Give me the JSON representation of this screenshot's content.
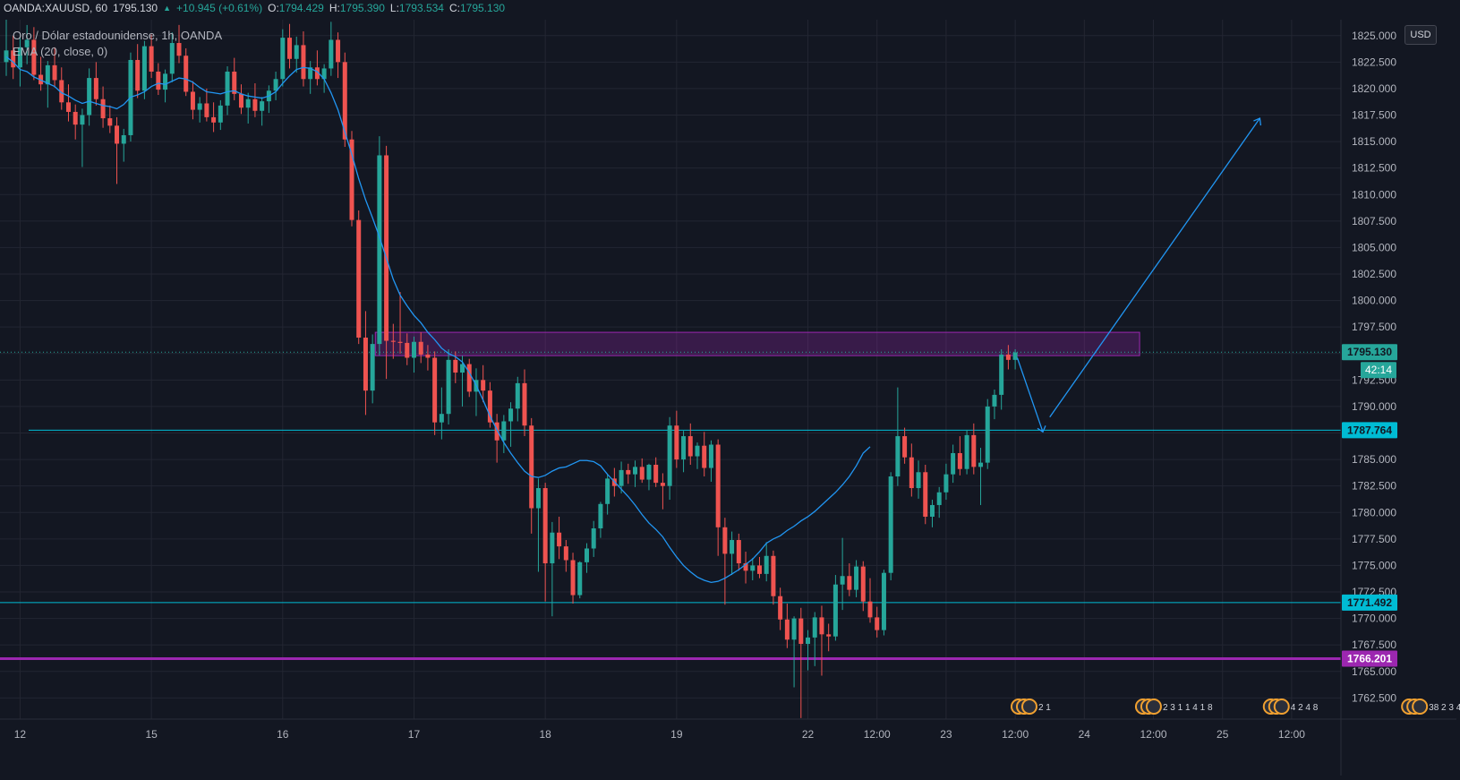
{
  "header": {
    "symbol": "OANDA:XAUUSD, 60",
    "last": "1795.130",
    "change": "+10.945 (+0.61%)",
    "o_label": "O:",
    "o": "1794.429",
    "h_label": "H:",
    "h": "1795.390",
    "l_label": "L:",
    "l": "1793.534",
    "c_label": "C:",
    "c": "1795.130"
  },
  "legend": {
    "title": "Oro / Dólar estadounidense, 1h, OANDA",
    "indicator": "EMA (20, close, 0)"
  },
  "currency": "USD",
  "colors": {
    "background": "#131722",
    "up": "#26a69a",
    "down": "#ef5350",
    "ema": "#2196f3",
    "cyan_line": "#00bcd4",
    "purple_line": "#9c27b0",
    "zone": "#9c27b0",
    "arrow": "#2196f3",
    "last_price": "#26a69a"
  },
  "chart_data": {
    "type": "candlestick",
    "symbol": "XAUUSD",
    "interval": "60",
    "ylim": [
      1760.5,
      1826.5
    ],
    "y_ticks": [
      "1762.500",
      "1765.000",
      "1767.500",
      "1770.000",
      "1772.500",
      "1775.000",
      "1777.500",
      "1780.000",
      "1782.500",
      "1785.000",
      "1787.500",
      "1790.000",
      "1792.500",
      "1795.000",
      "1797.500",
      "1800.000",
      "1802.500",
      "1805.000",
      "1807.500",
      "1810.000",
      "1812.500",
      "1815.000",
      "1817.500",
      "1820.000",
      "1822.500",
      "1825.000"
    ],
    "x_ticks": [
      {
        "label": "12",
        "bar": 2
      },
      {
        "label": "15",
        "bar": 21
      },
      {
        "label": "16",
        "bar": 40
      },
      {
        "label": "17",
        "bar": 59
      },
      {
        "label": "18",
        "bar": 78
      },
      {
        "label": "19",
        "bar": 97
      },
      {
        "label": "22",
        "bar": 116
      },
      {
        "label": "12:00",
        "bar": 126
      },
      {
        "label": "23",
        "bar": 136
      },
      {
        "label": "12:00",
        "bar": 146
      },
      {
        "label": "24",
        "bar": 156
      },
      {
        "label": "12:00",
        "bar": 166
      },
      {
        "label": "25",
        "bar": 176
      },
      {
        "label": "12:00",
        "bar": 186
      }
    ],
    "candles": [
      {
        "o": 1822.5,
        "h": 1826.5,
        "l": 1821.2,
        "c": 1823.6
      },
      {
        "o": 1823.6,
        "h": 1825.0,
        "l": 1820.9,
        "c": 1822.0
      },
      {
        "o": 1822.0,
        "h": 1824.8,
        "l": 1820.2,
        "c": 1823.9
      },
      {
        "o": 1823.9,
        "h": 1826.0,
        "l": 1822.3,
        "c": 1824.6
      },
      {
        "o": 1824.6,
        "h": 1825.8,
        "l": 1820.8,
        "c": 1821.3
      },
      {
        "o": 1821.3,
        "h": 1823.0,
        "l": 1819.8,
        "c": 1820.4
      },
      {
        "o": 1820.4,
        "h": 1822.6,
        "l": 1818.2,
        "c": 1822.2
      },
      {
        "o": 1822.2,
        "h": 1823.9,
        "l": 1820.1,
        "c": 1820.8
      },
      {
        "o": 1820.8,
        "h": 1822.0,
        "l": 1818.0,
        "c": 1818.7
      },
      {
        "o": 1818.7,
        "h": 1820.4,
        "l": 1816.9,
        "c": 1817.8
      },
      {
        "o": 1817.8,
        "h": 1818.5,
        "l": 1815.2,
        "c": 1816.6
      },
      {
        "o": 1816.6,
        "h": 1818.1,
        "l": 1812.6,
        "c": 1817.5
      },
      {
        "o": 1817.5,
        "h": 1821.9,
        "l": 1816.5,
        "c": 1821.0
      },
      {
        "o": 1821.0,
        "h": 1822.5,
        "l": 1818.4,
        "c": 1819.0
      },
      {
        "o": 1819.0,
        "h": 1820.2,
        "l": 1816.3,
        "c": 1817.2
      },
      {
        "o": 1817.2,
        "h": 1818.4,
        "l": 1815.8,
        "c": 1816.5
      },
      {
        "o": 1816.5,
        "h": 1817.3,
        "l": 1811.0,
        "c": 1814.8
      },
      {
        "o": 1814.8,
        "h": 1816.2,
        "l": 1813.1,
        "c": 1815.6
      },
      {
        "o": 1815.6,
        "h": 1823.4,
        "l": 1815.0,
        "c": 1822.7
      },
      {
        "o": 1822.7,
        "h": 1824.2,
        "l": 1819.1,
        "c": 1819.8
      },
      {
        "o": 1819.8,
        "h": 1824.5,
        "l": 1819.0,
        "c": 1824.0
      },
      {
        "o": 1824.0,
        "h": 1825.1,
        "l": 1821.0,
        "c": 1821.6
      },
      {
        "o": 1821.6,
        "h": 1822.4,
        "l": 1819.4,
        "c": 1819.9
      },
      {
        "o": 1819.9,
        "h": 1821.8,
        "l": 1818.7,
        "c": 1821.4
      },
      {
        "o": 1821.4,
        "h": 1825.3,
        "l": 1820.6,
        "c": 1824.3
      },
      {
        "o": 1824.3,
        "h": 1826.0,
        "l": 1822.4,
        "c": 1823.1
      },
      {
        "o": 1823.1,
        "h": 1823.8,
        "l": 1819.3,
        "c": 1819.7
      },
      {
        "o": 1819.7,
        "h": 1820.7,
        "l": 1817.1,
        "c": 1818.0
      },
      {
        "o": 1818.0,
        "h": 1819.2,
        "l": 1816.8,
        "c": 1818.6
      },
      {
        "o": 1818.6,
        "h": 1820.0,
        "l": 1816.9,
        "c": 1817.3
      },
      {
        "o": 1817.3,
        "h": 1818.7,
        "l": 1815.9,
        "c": 1816.8
      },
      {
        "o": 1816.8,
        "h": 1818.9,
        "l": 1816.1,
        "c": 1818.4
      },
      {
        "o": 1818.4,
        "h": 1822.1,
        "l": 1817.5,
        "c": 1821.6
      },
      {
        "o": 1821.6,
        "h": 1822.9,
        "l": 1818.9,
        "c": 1819.5
      },
      {
        "o": 1819.5,
        "h": 1820.4,
        "l": 1817.6,
        "c": 1818.2
      },
      {
        "o": 1818.2,
        "h": 1819.6,
        "l": 1816.7,
        "c": 1819.0
      },
      {
        "o": 1819.0,
        "h": 1820.5,
        "l": 1817.3,
        "c": 1817.9
      },
      {
        "o": 1817.9,
        "h": 1819.2,
        "l": 1816.5,
        "c": 1818.8
      },
      {
        "o": 1818.8,
        "h": 1820.3,
        "l": 1817.7,
        "c": 1819.8
      },
      {
        "o": 1819.8,
        "h": 1821.6,
        "l": 1818.9,
        "c": 1820.9
      },
      {
        "o": 1820.9,
        "h": 1825.6,
        "l": 1820.2,
        "c": 1824.8
      },
      {
        "o": 1824.8,
        "h": 1826.1,
        "l": 1821.9,
        "c": 1822.8
      },
      {
        "o": 1822.8,
        "h": 1824.9,
        "l": 1821.5,
        "c": 1824.1
      },
      {
        "o": 1824.1,
        "h": 1825.4,
        "l": 1820.2,
        "c": 1820.9
      },
      {
        "o": 1820.9,
        "h": 1822.6,
        "l": 1819.5,
        "c": 1822.0
      },
      {
        "o": 1822.0,
        "h": 1823.6,
        "l": 1820.3,
        "c": 1820.9
      },
      {
        "o": 1820.9,
        "h": 1822.3,
        "l": 1819.6,
        "c": 1821.9
      },
      {
        "o": 1821.9,
        "h": 1826.3,
        "l": 1821.2,
        "c": 1824.6
      },
      {
        "o": 1824.6,
        "h": 1825.3,
        "l": 1821.0,
        "c": 1822.5
      },
      {
        "o": 1822.5,
        "h": 1823.4,
        "l": 1814.5,
        "c": 1815.2
      },
      {
        "o": 1815.2,
        "h": 1816.0,
        "l": 1807.0,
        "c": 1807.6
      },
      {
        "o": 1807.6,
        "h": 1808.5,
        "l": 1795.9,
        "c": 1796.5
      },
      {
        "o": 1796.5,
        "h": 1799.0,
        "l": 1789.2,
        "c": 1791.5
      },
      {
        "o": 1791.5,
        "h": 1796.8,
        "l": 1790.3,
        "c": 1795.9
      },
      {
        "o": 1795.9,
        "h": 1815.5,
        "l": 1794.8,
        "c": 1813.7
      },
      {
        "o": 1813.7,
        "h": 1814.6,
        "l": 1792.6,
        "c": 1796.2
      },
      {
        "o": 1796.2,
        "h": 1797.8,
        "l": 1794.5,
        "c": 1796.1
      },
      {
        "o": 1796.1,
        "h": 1800.8,
        "l": 1795.0,
        "c": 1796.0
      },
      {
        "o": 1796.0,
        "h": 1796.9,
        "l": 1793.9,
        "c": 1794.6
      },
      {
        "o": 1794.6,
        "h": 1796.6,
        "l": 1793.2,
        "c": 1796.1
      },
      {
        "o": 1796.1,
        "h": 1797.0,
        "l": 1794.1,
        "c": 1794.9
      },
      {
        "o": 1794.9,
        "h": 1795.8,
        "l": 1793.4,
        "c": 1794.6
      },
      {
        "o": 1794.6,
        "h": 1795.2,
        "l": 1787.3,
        "c": 1788.5
      },
      {
        "o": 1788.5,
        "h": 1791.8,
        "l": 1786.9,
        "c": 1789.3
      },
      {
        "o": 1789.3,
        "h": 1795.4,
        "l": 1788.3,
        "c": 1794.4
      },
      {
        "o": 1794.4,
        "h": 1795.2,
        "l": 1792.2,
        "c": 1793.2
      },
      {
        "o": 1793.2,
        "h": 1794.8,
        "l": 1790.0,
        "c": 1794.0
      },
      {
        "o": 1794.0,
        "h": 1794.5,
        "l": 1790.9,
        "c": 1791.4
      },
      {
        "o": 1791.4,
        "h": 1793.6,
        "l": 1789.1,
        "c": 1792.5
      },
      {
        "o": 1792.5,
        "h": 1793.9,
        "l": 1790.4,
        "c": 1791.5
      },
      {
        "o": 1791.5,
        "h": 1792.3,
        "l": 1788.0,
        "c": 1788.5
      },
      {
        "o": 1788.5,
        "h": 1789.3,
        "l": 1784.7,
        "c": 1786.8
      },
      {
        "o": 1786.8,
        "h": 1789.2,
        "l": 1785.6,
        "c": 1788.6
      },
      {
        "o": 1788.6,
        "h": 1790.4,
        "l": 1786.2,
        "c": 1789.8
      },
      {
        "o": 1789.8,
        "h": 1792.8,
        "l": 1788.6,
        "c": 1792.2
      },
      {
        "o": 1792.2,
        "h": 1793.5,
        "l": 1787.2,
        "c": 1788.2
      },
      {
        "o": 1788.2,
        "h": 1788.9,
        "l": 1778.0,
        "c": 1780.4
      },
      {
        "o": 1780.4,
        "h": 1783.2,
        "l": 1774.4,
        "c": 1782.3
      },
      {
        "o": 1782.3,
        "h": 1782.8,
        "l": 1771.6,
        "c": 1775.2
      },
      {
        "o": 1775.2,
        "h": 1779.1,
        "l": 1770.2,
        "c": 1778.1
      },
      {
        "o": 1778.1,
        "h": 1779.6,
        "l": 1775.6,
        "c": 1776.8
      },
      {
        "o": 1776.8,
        "h": 1777.4,
        "l": 1774.4,
        "c": 1775.5
      },
      {
        "o": 1775.5,
        "h": 1776.2,
        "l": 1771.4,
        "c": 1772.2
      },
      {
        "o": 1772.2,
        "h": 1775.4,
        "l": 1771.9,
        "c": 1775.3
      },
      {
        "o": 1775.3,
        "h": 1777.1,
        "l": 1774.3,
        "c": 1776.6
      },
      {
        "o": 1776.6,
        "h": 1779.2,
        "l": 1775.8,
        "c": 1778.5
      },
      {
        "o": 1778.5,
        "h": 1781.0,
        "l": 1777.6,
        "c": 1780.8
      },
      {
        "o": 1780.8,
        "h": 1783.6,
        "l": 1779.8,
        "c": 1783.2
      },
      {
        "o": 1783.2,
        "h": 1784.2,
        "l": 1781.5,
        "c": 1782.5
      },
      {
        "o": 1782.5,
        "h": 1784.8,
        "l": 1781.8,
        "c": 1784.0
      },
      {
        "o": 1784.0,
        "h": 1784.6,
        "l": 1782.7,
        "c": 1783.6
      },
      {
        "o": 1783.6,
        "h": 1784.9,
        "l": 1782.4,
        "c": 1784.3
      },
      {
        "o": 1784.3,
        "h": 1785.1,
        "l": 1782.8,
        "c": 1783.1
      },
      {
        "o": 1783.1,
        "h": 1784.6,
        "l": 1782.1,
        "c": 1784.5
      },
      {
        "o": 1784.5,
        "h": 1785.2,
        "l": 1782.4,
        "c": 1782.8
      },
      {
        "o": 1782.8,
        "h": 1783.7,
        "l": 1780.3,
        "c": 1782.5
      },
      {
        "o": 1782.5,
        "h": 1789.0,
        "l": 1781.2,
        "c": 1788.2
      },
      {
        "o": 1788.2,
        "h": 1789.6,
        "l": 1784.2,
        "c": 1785.0
      },
      {
        "o": 1785.0,
        "h": 1787.7,
        "l": 1783.8,
        "c": 1787.2
      },
      {
        "o": 1787.2,
        "h": 1788.4,
        "l": 1784.5,
        "c": 1785.3
      },
      {
        "o": 1785.3,
        "h": 1786.6,
        "l": 1784.1,
        "c": 1786.3
      },
      {
        "o": 1786.3,
        "h": 1787.6,
        "l": 1783.4,
        "c": 1784.2
      },
      {
        "o": 1784.2,
        "h": 1786.8,
        "l": 1782.9,
        "c": 1786.4
      },
      {
        "o": 1786.4,
        "h": 1786.9,
        "l": 1775.9,
        "c": 1778.6
      },
      {
        "o": 1778.6,
        "h": 1779.5,
        "l": 1771.3,
        "c": 1776.1
      },
      {
        "o": 1776.1,
        "h": 1778.2,
        "l": 1774.1,
        "c": 1777.4
      },
      {
        "o": 1777.4,
        "h": 1778.0,
        "l": 1774.5,
        "c": 1775.2
      },
      {
        "o": 1775.2,
        "h": 1776.3,
        "l": 1773.3,
        "c": 1774.5
      },
      {
        "o": 1774.5,
        "h": 1775.7,
        "l": 1773.6,
        "c": 1775.0
      },
      {
        "o": 1775.0,
        "h": 1775.8,
        "l": 1773.8,
        "c": 1774.2
      },
      {
        "o": 1774.2,
        "h": 1777.2,
        "l": 1773.5,
        "c": 1775.9
      },
      {
        "o": 1775.9,
        "h": 1776.4,
        "l": 1771.3,
        "c": 1772.1
      },
      {
        "o": 1772.1,
        "h": 1772.9,
        "l": 1768.9,
        "c": 1769.9
      },
      {
        "o": 1769.9,
        "h": 1771.4,
        "l": 1767.2,
        "c": 1768.0
      },
      {
        "o": 1768.0,
        "h": 1770.2,
        "l": 1763.5,
        "c": 1770.0
      },
      {
        "o": 1770.0,
        "h": 1771.0,
        "l": 1760.6,
        "c": 1767.6
      },
      {
        "o": 1767.6,
        "h": 1768.9,
        "l": 1765.1,
        "c": 1768.2
      },
      {
        "o": 1768.2,
        "h": 1770.6,
        "l": 1765.5,
        "c": 1770.1
      },
      {
        "o": 1770.1,
        "h": 1771.2,
        "l": 1764.6,
        "c": 1768.5
      },
      {
        "o": 1768.5,
        "h": 1769.5,
        "l": 1766.9,
        "c": 1768.3
      },
      {
        "o": 1768.3,
        "h": 1774.1,
        "l": 1767.9,
        "c": 1773.2
      },
      {
        "o": 1773.2,
        "h": 1777.6,
        "l": 1770.8,
        "c": 1774.0
      },
      {
        "o": 1774.0,
        "h": 1775.2,
        "l": 1772.1,
        "c": 1772.7
      },
      {
        "o": 1772.7,
        "h": 1775.5,
        "l": 1772.0,
        "c": 1774.9
      },
      {
        "o": 1774.9,
        "h": 1775.4,
        "l": 1770.7,
        "c": 1771.6
      },
      {
        "o": 1771.6,
        "h": 1773.8,
        "l": 1769.6,
        "c": 1770.1
      },
      {
        "o": 1770.1,
        "h": 1771.1,
        "l": 1768.2,
        "c": 1768.9
      },
      {
        "o": 1768.9,
        "h": 1774.6,
        "l": 1768.4,
        "c": 1774.3
      },
      {
        "o": 1774.3,
        "h": 1783.8,
        "l": 1773.6,
        "c": 1783.4
      },
      {
        "o": 1783.4,
        "h": 1791.8,
        "l": 1782.5,
        "c": 1787.2
      },
      {
        "o": 1787.2,
        "h": 1788.0,
        "l": 1784.6,
        "c": 1785.2
      },
      {
        "o": 1785.2,
        "h": 1786.5,
        "l": 1781.5,
        "c": 1782.3
      },
      {
        "o": 1782.3,
        "h": 1784.9,
        "l": 1781.3,
        "c": 1783.8
      },
      {
        "o": 1783.8,
        "h": 1784.5,
        "l": 1778.9,
        "c": 1779.6
      },
      {
        "o": 1779.6,
        "h": 1781.2,
        "l": 1778.6,
        "c": 1780.7
      },
      {
        "o": 1780.7,
        "h": 1782.4,
        "l": 1779.5,
        "c": 1781.9
      },
      {
        "o": 1781.9,
        "h": 1784.6,
        "l": 1781.2,
        "c": 1783.6
      },
      {
        "o": 1783.6,
        "h": 1786.4,
        "l": 1782.8,
        "c": 1785.6
      },
      {
        "o": 1785.6,
        "h": 1787.2,
        "l": 1783.5,
        "c": 1784.1
      },
      {
        "o": 1784.1,
        "h": 1787.8,
        "l": 1783.6,
        "c": 1787.3
      },
      {
        "o": 1787.3,
        "h": 1788.4,
        "l": 1783.6,
        "c": 1784.3
      },
      {
        "o": 1784.3,
        "h": 1786.1,
        "l": 1780.7,
        "c": 1784.7
      },
      {
        "o": 1784.7,
        "h": 1790.7,
        "l": 1784.1,
        "c": 1790.0
      },
      {
        "o": 1790.0,
        "h": 1791.6,
        "l": 1788.8,
        "c": 1791.1
      },
      {
        "o": 1791.1,
        "h": 1795.4,
        "l": 1789.7,
        "c": 1794.9
      },
      {
        "o": 1794.9,
        "h": 1795.8,
        "l": 1793.5,
        "c": 1794.4
      },
      {
        "o": 1794.4,
        "h": 1795.4,
        "l": 1793.5,
        "c": 1795.1
      }
    ],
    "ema_20": [
      1823.0,
      1822.5,
      1821.8,
      1821.6,
      1821.1,
      1820.8,
      1820.5,
      1820.2,
      1819.6,
      1819.3,
      1818.9,
      1818.6,
      1818.8,
      1818.6,
      1818.4,
      1818.3,
      1818.1,
      1818.5,
      1819.2,
      1819.4,
      1819.7,
      1820.2,
      1820.5,
      1820.4,
      1820.7,
      1821.0,
      1820.9,
      1820.6,
      1820.1,
      1819.7,
      1819.6,
      1819.5,
      1819.7,
      1819.8,
      1819.5,
      1819.3,
      1819.2,
      1819.1,
      1819.3,
      1819.7,
      1820.5,
      1821.2,
      1821.8,
      1822.0,
      1821.9,
      1821.6,
      1820.9,
      1819.6,
      1818.0,
      1815.9,
      1813.8,
      1811.5,
      1809.5,
      1807.8,
      1806.0,
      1804.0,
      1802.0,
      1800.5,
      1799.5,
      1798.6,
      1797.9,
      1797.0,
      1796.3,
      1795.5,
      1795.0,
      1794.7,
      1794.2,
      1793.2,
      1792.0,
      1790.6,
      1789.1,
      1787.8,
      1786.6,
      1785.6,
      1784.7,
      1783.9,
      1783.4,
      1783.3,
      1783.5,
      1783.9,
      1784.2,
      1784.3,
      1784.6,
      1784.9,
      1784.9,
      1784.8,
      1784.4,
      1783.6,
      1782.9,
      1782.2,
      1781.5,
      1780.7,
      1779.8,
      1779.0,
      1778.4,
      1777.7,
      1776.7,
      1775.8,
      1775.0,
      1774.4,
      1773.9,
      1773.6,
      1773.4,
      1773.5,
      1773.8,
      1774.2,
      1774.6,
      1775.1,
      1775.6,
      1776.3,
      1777.1,
      1777.5,
      1777.8,
      1778.3,
      1778.7,
      1779.2,
      1779.6,
      1780.1,
      1780.7,
      1781.3,
      1781.9,
      1782.6,
      1783.4,
      1784.4,
      1785.6,
      1786.2
    ],
    "levels": [
      {
        "value": 1795.13,
        "label": "1795.130",
        "color": "#26a69a",
        "style": "dotted"
      },
      {
        "value": 1787.764,
        "label": "1787.764",
        "color": "#00bcd4",
        "style": "solid"
      },
      {
        "value": 1771.492,
        "label": "1771.492",
        "color": "#00bcd4",
        "style": "solid"
      },
      {
        "value": 1766.201,
        "label": "1766.201",
        "color": "#9c27b0",
        "style": "solid"
      }
    ],
    "countdown": "42:14",
    "zone": {
      "from_bar": 53.4,
      "to_bar": 164,
      "low": 1794.8,
      "high": 1797.0
    },
    "projection": [
      {
        "bar": 146.3,
        "y": 1794.6
      },
      {
        "bar": 150.0,
        "y": 1787.6
      },
      {
        "bar": 151.0,
        "y": 1789.0
      },
      {
        "bar": 181.4,
        "y": 1817.2
      }
    ],
    "event_markers": [
      {
        "bar": 146.5,
        "text": "2 1"
      },
      {
        "bar": 164.5,
        "text": "2 3 1 1 4 1 8"
      },
      {
        "bar": 183.0,
        "text": "4 2 4 8"
      },
      {
        "bar": 203.0,
        "text": "38 2 3 4"
      }
    ]
  }
}
